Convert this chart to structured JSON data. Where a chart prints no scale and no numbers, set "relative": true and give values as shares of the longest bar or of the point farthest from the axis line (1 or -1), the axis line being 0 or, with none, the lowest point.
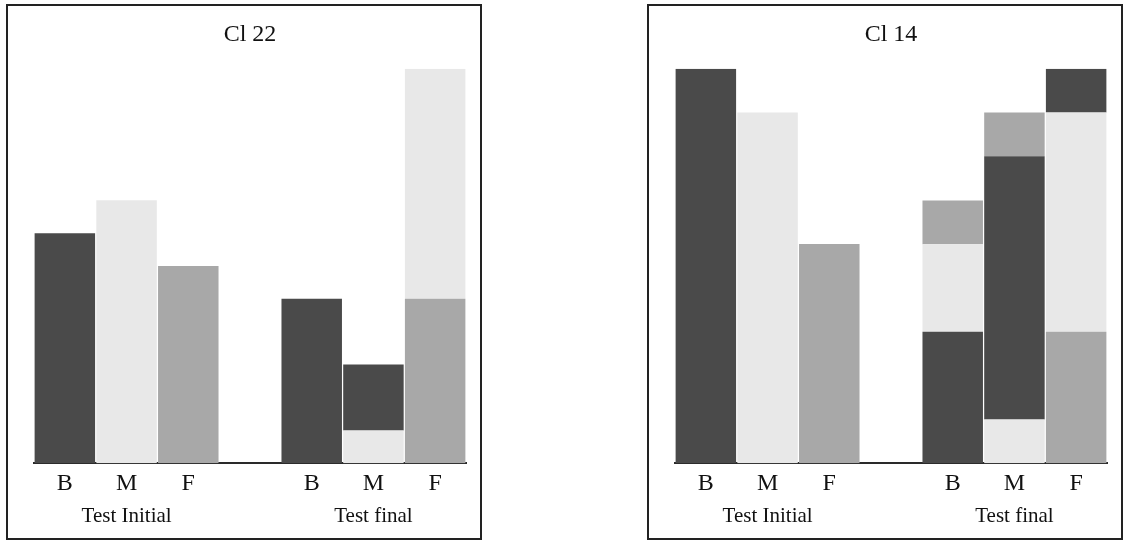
{
  "chart_data": [
    {
      "type": "bar",
      "title": "Cl 22",
      "stacked": true,
      "relative": true,
      "tick_labels": "x",
      "categories": [
        "B",
        "M",
        "F",
        null,
        "B",
        "M",
        "F"
      ],
      "series": [
        {
          "values": [
            0.583,
            0.667,
            0.5,
            null,
            0.417,
            0.083,
            0.417
          ],
          "colors": [
            "#4a4a4a",
            "#e8e8e8",
            "#a8a8a8",
            "#e8e8e8",
            "#4a4a4a",
            "#e8e8e8",
            "#a8a8a8"
          ]
        },
        {
          "values": [
            null,
            null,
            null,
            null,
            null,
            0.167,
            0.583
          ],
          "colors": [
            "#e8e8e8",
            "#e8e8e8",
            "#e8e8e8",
            "#e8e8e8",
            "#e8e8e8",
            "#4a4a4a",
            "#e8e8e8"
          ]
        }
      ],
      "annotations": [
        "Test Initial",
        "Test final"
      ]
    },
    {
      "type": "bar",
      "title": "Cl 14",
      "stacked": true,
      "relative": true,
      "tick_labels": "x",
      "categories": [
        "B",
        "M",
        "F",
        null,
        "B",
        "M",
        "F"
      ],
      "series": [
        {
          "values": [
            1,
            0.889,
            0.556,
            null,
            0.333,
            0.111,
            0.333
          ],
          "colors": [
            "#4a4a4a",
            "#e8e8e8",
            "#a8a8a8",
            "#e8e8e8",
            "#4a4a4a",
            "#e8e8e8",
            "#a8a8a8"
          ]
        },
        {
          "values": [
            null,
            null,
            null,
            null,
            0.222,
            0.667,
            0.556
          ],
          "colors": [
            "#e8e8e8",
            "#e8e8e8",
            "#e8e8e8",
            "#e8e8e8",
            "#e8e8e8",
            "#4a4a4a",
            "#e8e8e8"
          ]
        },
        {
          "values": [
            null,
            null,
            null,
            null,
            0.111,
            0.111,
            0.111
          ],
          "colors": [
            "#e8e8e8",
            "#e8e8e8",
            "#e8e8e8",
            "#e8e8e8",
            "#a8a8a8",
            "#a8a8a8",
            "#4a4a4a"
          ]
        }
      ],
      "annotations": [
        "Test Initial",
        "Test final"
      ]
    }
  ]
}
